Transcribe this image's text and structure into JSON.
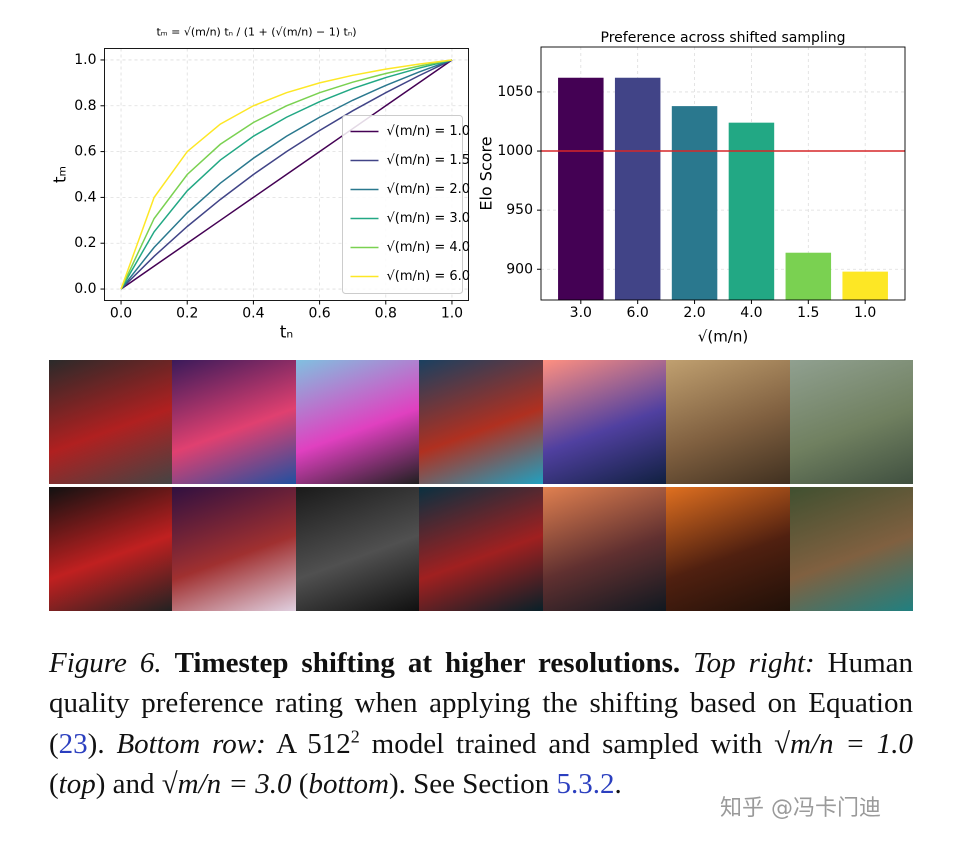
{
  "chart_data": [
    {
      "type": "line",
      "title": "tₘ = √(m/n) tₙ / (1 + (√(m/n) − 1) tₙ)",
      "x_label": "tₙ",
      "y_label": "tₘ",
      "x": [
        0,
        0.1,
        0.2,
        0.3,
        0.4,
        0.5,
        0.6,
        0.7,
        0.8,
        0.9,
        1
      ],
      "series": [
        {
          "name": "√(m/n) = 1.0",
          "color": "#440154",
          "values": [
            0,
            0.1,
            0.2,
            0.3,
            0.4,
            0.5,
            0.6,
            0.7,
            0.8,
            0.9,
            1
          ]
        },
        {
          "name": "√(m/n) = 1.5",
          "color": "#414487",
          "values": [
            0,
            0.143,
            0.273,
            0.391,
            0.5,
            0.6,
            0.692,
            0.778,
            0.857,
            0.931,
            1
          ]
        },
        {
          "name": "√(m/n) = 2.0",
          "color": "#2a788e",
          "values": [
            0,
            0.182,
            0.333,
            0.462,
            0.571,
            0.667,
            0.75,
            0.824,
            0.889,
            0.947,
            1
          ]
        },
        {
          "name": "√(m/n) = 3.0",
          "color": "#22a884",
          "values": [
            0,
            0.25,
            0.429,
            0.563,
            0.667,
            0.75,
            0.818,
            0.875,
            0.923,
            0.964,
            1
          ]
        },
        {
          "name": "√(m/n) = 4.0",
          "color": "#7ad151",
          "values": [
            0,
            0.308,
            0.5,
            0.632,
            0.727,
            0.8,
            0.857,
            0.903,
            0.941,
            0.973,
            1
          ]
        },
        {
          "name": "√(m/n) = 6.0",
          "color": "#fde725",
          "values": [
            0,
            0.4,
            0.6,
            0.72,
            0.8,
            0.857,
            0.9,
            0.933,
            0.96,
            0.982,
            1
          ]
        }
      ],
      "xlim": [
        -0.05,
        1.05
      ],
      "ylim": [
        -0.05,
        1.05
      ],
      "xticks": [
        {
          "value": 0,
          "label": "0.0"
        },
        0.2,
        0.4,
        0.6,
        0.8,
        {
          "value": 1,
          "label": "1.0"
        }
      ],
      "yticks": [
        {
          "value": 0,
          "label": "0.0"
        },
        0.2,
        0.4,
        0.6,
        0.8,
        {
          "value": 1,
          "label": "1.0"
        }
      ],
      "grid": true,
      "legend": "lower right"
    },
    {
      "type": "bar",
      "title": "Preference across shifted sampling",
      "x_label": "√(m/n)",
      "y_label": "Elo Score",
      "categories": [
        "3.0",
        "6.0",
        "2.0",
        "4.0",
        "1.5",
        "1.0"
      ],
      "values": [
        1062,
        1062,
        1038,
        1024,
        914,
        898
      ],
      "colors": [
        "#440154",
        "#414487",
        "#2a788e",
        "#22a884",
        "#7ad151",
        "#fde725"
      ],
      "ylim": [
        874,
        1088
      ],
      "yticks": [
        900,
        950,
        1000,
        1050
      ],
      "hline": 1000,
      "hline_color": "#d62728",
      "grid": true
    }
  ],
  "caption": {
    "segments": [
      "Figure 6.",
      "Timestep shifting at higher resolutions.",
      "Top right:",
      "Human quality preference rating when applying the shifting based on Equation (",
      "23",
      ").",
      "Bottom row:",
      "A 512",
      "2",
      "model trained and sampled with",
      "√m/n = 1.0",
      "(",
      "top",
      ") and",
      "√m/n = 3.0",
      "(",
      "bottom",
      "). See Section",
      "5.3.2",
      "."
    ]
  },
  "watermark": "知乎 @冯卡门迪"
}
